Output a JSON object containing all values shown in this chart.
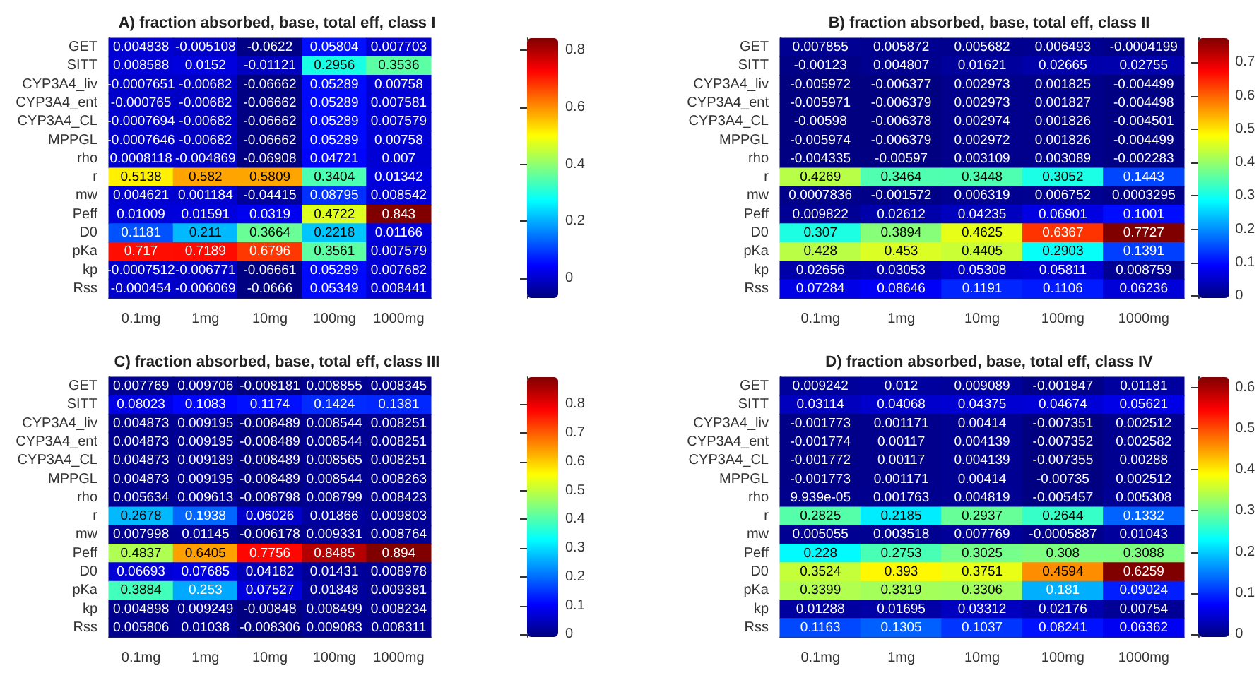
{
  "chart_data": [
    {
      "type": "heatmap",
      "title": "A) fraction absorbed, base, total eff, class I",
      "categories": [
        "0.1mg",
        "1mg",
        "10mg",
        "100mg",
        "1000mg"
      ],
      "y_categories": [
        "GET",
        "SITT",
        "CYP3A4_liv",
        "CYP3A4_ent",
        "CYP3A4_CL",
        "MPPGL",
        "rho",
        "r",
        "mw",
        "Peff",
        "D0",
        "pKa",
        "kp",
        "Rss"
      ],
      "cells": [
        [
          0.004838,
          -0.005108,
          -0.0622,
          0.05804,
          0.007703
        ],
        [
          0.008588,
          0.0152,
          -0.01121,
          0.2956,
          0.3536
        ],
        [
          -0.0007651,
          -0.00682,
          -0.06662,
          0.05289,
          0.00758
        ],
        [
          -0.000765,
          -0.00682,
          -0.06662,
          0.05289,
          0.007581
        ],
        [
          -0.0007694,
          -0.00682,
          -0.06662,
          0.05289,
          0.007579
        ],
        [
          -0.0007646,
          -0.00682,
          -0.06662,
          0.05289,
          0.00758
        ],
        [
          0.0008118,
          -0.004869,
          -0.06908,
          0.04721,
          0.007
        ],
        [
          0.5138,
          0.582,
          0.5809,
          0.3404,
          0.01342
        ],
        [
          0.004621,
          0.001184,
          -0.04415,
          0.08795,
          0.008542
        ],
        [
          0.01009,
          0.01591,
          0.0319,
          0.4722,
          0.843
        ],
        [
          0.1181,
          0.211,
          0.3664,
          0.2218,
          0.01166
        ],
        [
          0.717,
          0.7189,
          0.6796,
          0.3561,
          0.007579
        ],
        [
          -0.0007512,
          -0.006771,
          -0.06661,
          0.05289,
          0.007682
        ],
        [
          -0.000454,
          -0.006069,
          -0.0666,
          0.05349,
          0.008441
        ]
      ],
      "clim": [
        -0.06908,
        0.843
      ],
      "cticks": [
        0,
        0.2,
        0.4,
        0.6,
        0.8
      ],
      "data_labels": true
    },
    {
      "type": "heatmap",
      "title": "B) fraction absorbed, base, total eff, class II",
      "categories": [
        "0.1mg",
        "1mg",
        "10mg",
        "100mg",
        "1000mg"
      ],
      "y_categories": [
        "GET",
        "SITT",
        "CYP3A4_liv",
        "CYP3A4_ent",
        "CYP3A4_CL",
        "MPPGL",
        "rho",
        "r",
        "mw",
        "Peff",
        "D0",
        "pKa",
        "kp",
        "Rss"
      ],
      "cells": [
        [
          0.007855,
          0.005872,
          0.005682,
          0.006493,
          -0.0004199
        ],
        [
          -0.00123,
          0.004807,
          0.01621,
          0.02665,
          0.02755
        ],
        [
          -0.005972,
          -0.006377,
          0.002973,
          0.001825,
          -0.004499
        ],
        [
          -0.005971,
          -0.006379,
          0.002973,
          0.001827,
          -0.004498
        ],
        [
          -0.00598,
          -0.006378,
          0.002974,
          0.001826,
          -0.004501
        ],
        [
          -0.005974,
          -0.006379,
          0.002972,
          0.001826,
          -0.004499
        ],
        [
          -0.004335,
          -0.00597,
          0.003109,
          0.003089,
          -0.002283
        ],
        [
          0.4269,
          0.3464,
          0.3448,
          0.3052,
          0.1443
        ],
        [
          0.0007836,
          -0.001572,
          0.006319,
          0.006752,
          0.0003295
        ],
        [
          0.009822,
          0.02612,
          0.04235,
          0.06901,
          0.1001
        ],
        [
          0.307,
          0.3894,
          0.4625,
          0.6367,
          0.7727
        ],
        [
          0.428,
          0.453,
          0.4405,
          0.2903,
          0.1391
        ],
        [
          0.02656,
          0.03053,
          0.05308,
          0.05811,
          0.008759
        ],
        [
          0.07284,
          0.08646,
          0.1191,
          0.1106,
          0.06236
        ]
      ],
      "clim": [
        -0.006379,
        0.7727
      ],
      "cticks": [
        0,
        0.1,
        0.2,
        0.3,
        0.4,
        0.5,
        0.6,
        0.7
      ],
      "data_labels": true
    },
    {
      "type": "heatmap",
      "title": "C) fraction absorbed, base, total eff, class III",
      "categories": [
        "0.1mg",
        "1mg",
        "10mg",
        "100mg",
        "1000mg"
      ],
      "y_categories": [
        "GET",
        "SITT",
        "CYP3A4_liv",
        "CYP3A4_ent",
        "CYP3A4_CL",
        "MPPGL",
        "rho",
        "r",
        "mw",
        "Peff",
        "D0",
        "pKa",
        "kp",
        "Rss"
      ],
      "cells": [
        [
          0.007769,
          0.009706,
          -0.008181,
          0.008855,
          0.008345
        ],
        [
          0.08023,
          0.1083,
          0.1174,
          0.1424,
          0.1381
        ],
        [
          0.004873,
          0.009195,
          -0.008489,
          0.008544,
          0.008251
        ],
        [
          0.004873,
          0.009195,
          -0.008489,
          0.008544,
          0.008251
        ],
        [
          0.004873,
          0.009189,
          -0.008489,
          0.008565,
          0.008251
        ],
        [
          0.004873,
          0.009195,
          -0.008489,
          0.008544,
          0.008263
        ],
        [
          0.005634,
          0.009613,
          -0.008798,
          0.008799,
          0.008423
        ],
        [
          0.2678,
          0.1938,
          0.06026,
          0.01866,
          0.009803
        ],
        [
          0.007998,
          0.01145,
          -0.006178,
          0.009331,
          0.008764
        ],
        [
          0.4837,
          0.6405,
          0.7756,
          0.8485,
          0.894
        ],
        [
          0.06693,
          0.07685,
          0.04182,
          0.01431,
          0.008978
        ],
        [
          0.3884,
          0.253,
          0.07527,
          0.01848,
          0.009381
        ],
        [
          0.004898,
          0.009249,
          -0.00848,
          0.008499,
          0.008234
        ],
        [
          0.005806,
          0.01038,
          -0.008306,
          0.009083,
          0.008311
        ]
      ],
      "clim": [
        -0.008798,
        0.894
      ],
      "cticks": [
        0,
        0.1,
        0.2,
        0.3,
        0.4,
        0.5,
        0.6,
        0.7,
        0.8
      ],
      "data_labels": true
    },
    {
      "type": "heatmap",
      "title": "D) fraction absorbed, base, total eff, class IV",
      "categories": [
        "0.1mg",
        "1mg",
        "10mg",
        "100mg",
        "1000mg"
      ],
      "y_categories": [
        "GET",
        "SITT",
        "CYP3A4_liv",
        "CYP3A4_ent",
        "CYP3A4_CL",
        "MPPGL",
        "rho",
        "r",
        "mw",
        "Peff",
        "D0",
        "pKa",
        "kp",
        "Rss"
      ],
      "cells": [
        [
          0.009242,
          0.012,
          0.009089,
          -0.001847,
          0.01181
        ],
        [
          0.03114,
          0.04068,
          0.04375,
          0.04674,
          0.05621
        ],
        [
          -0.001773,
          0.001171,
          0.00414,
          -0.007351,
          0.002512
        ],
        [
          -0.001774,
          0.00117,
          0.004139,
          -0.007352,
          0.002582
        ],
        [
          -0.001772,
          0.00117,
          0.004139,
          -0.007355,
          0.00288
        ],
        [
          -0.001773,
          0.001171,
          0.00414,
          -0.00735,
          0.002512
        ],
        [
          9.939e-05,
          0.001763,
          0.004819,
          -0.005457,
          0.005308
        ],
        [
          0.2825,
          0.2185,
          0.2937,
          0.2644,
          0.1332
        ],
        [
          0.005055,
          0.003518,
          0.007769,
          -0.0005887,
          0.01043
        ],
        [
          0.228,
          0.2753,
          0.3025,
          0.308,
          0.3088
        ],
        [
          0.3524,
          0.393,
          0.3751,
          0.4594,
          0.6259
        ],
        [
          0.3399,
          0.3319,
          0.3306,
          0.181,
          0.09024
        ],
        [
          0.01288,
          0.01695,
          0.03312,
          0.02176,
          0.00754
        ],
        [
          0.1163,
          0.1305,
          0.1037,
          0.08241,
          0.06362
        ]
      ],
      "clim": [
        -0.007355,
        0.6259
      ],
      "cticks": [
        0,
        0.1,
        0.2,
        0.3,
        0.4,
        0.5,
        0.6
      ],
      "data_labels": true
    }
  ]
}
